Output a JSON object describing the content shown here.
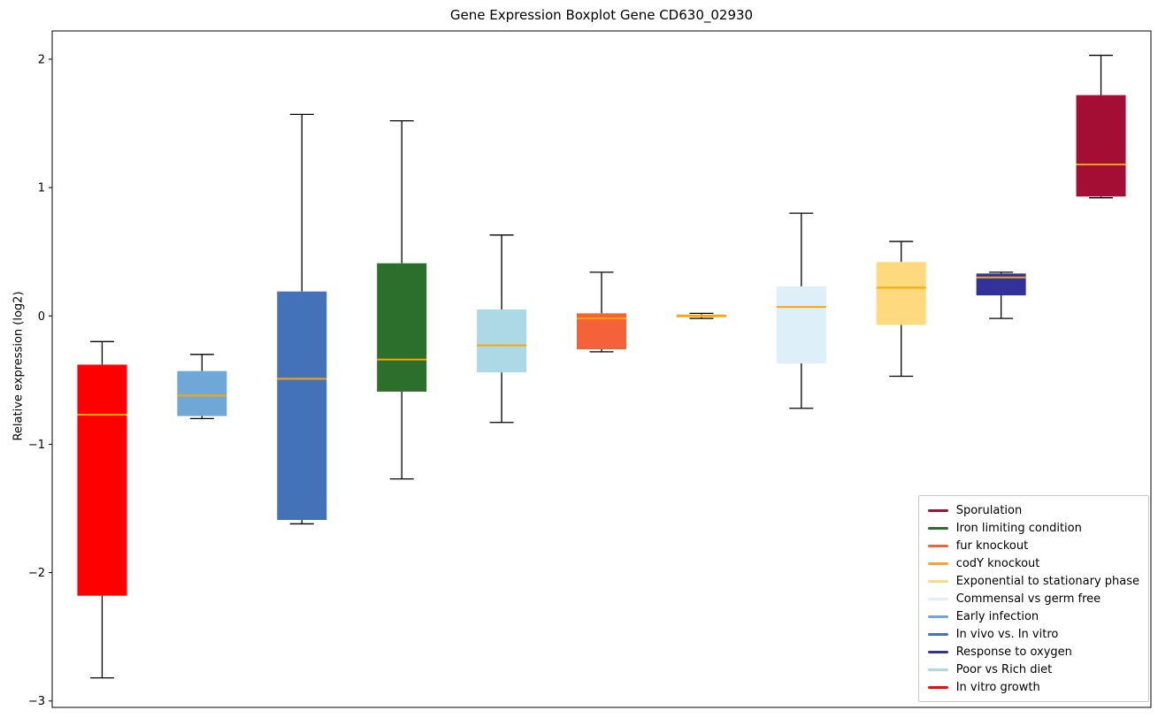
{
  "chart_data": {
    "type": "boxplot",
    "title": "Gene Expression Boxplot Gene CD630_02930",
    "ylabel": "Relative expression (log2)",
    "ylim": [
      -3.05,
      2.22
    ],
    "yticks": [
      -3,
      -2,
      -1,
      0,
      1,
      2
    ],
    "grid": false,
    "median_color": "#ffa500",
    "whisker_color": "#000000",
    "groups": [
      {
        "label": "In vitro growth",
        "color": "#ff0000",
        "whislo": -2.82,
        "q1": -2.18,
        "med": -0.77,
        "q3": -0.38,
        "whishi": -0.2
      },
      {
        "label": "Early infection",
        "color": "#6fa8d6",
        "whislo": -0.8,
        "q1": -0.78,
        "med": -0.62,
        "q3": -0.43,
        "whishi": -0.3
      },
      {
        "label": "In vivo vs. In vitro",
        "color": "#4472b9",
        "whislo": -1.62,
        "q1": -1.59,
        "med": -0.49,
        "q3": 0.19,
        "whishi": 1.57
      },
      {
        "label": "Iron limiting condition",
        "color": "#2c6e2c",
        "whislo": -1.27,
        "q1": -0.59,
        "med": -0.34,
        "q3": 0.41,
        "whishi": 1.52
      },
      {
        "label": "Poor vs Rich diet",
        "color": "#add8e6",
        "whislo": -0.83,
        "q1": -0.44,
        "med": -0.23,
        "q3": 0.05,
        "whishi": 0.63
      },
      {
        "label": "fur knockout",
        "color": "#f4623a",
        "whislo": -0.28,
        "q1": -0.26,
        "med": -0.02,
        "q3": 0.02,
        "whishi": 0.34
      },
      {
        "label": "codY knockout",
        "color": "#ffa033",
        "whislo": -0.02,
        "q1": -0.01,
        "med": 0.0,
        "q3": 0.01,
        "whishi": 0.02
      },
      {
        "label": "Commensal vs germ free",
        "color": "#ddeff8",
        "whislo": -0.72,
        "q1": -0.37,
        "med": 0.07,
        "q3": 0.23,
        "whishi": 0.8
      },
      {
        "label": "Exponential to stationary phase",
        "color": "#ffd97d",
        "whislo": -0.47,
        "q1": -0.07,
        "med": 0.22,
        "q3": 0.42,
        "whishi": 0.58
      },
      {
        "label": "Response to oxygen",
        "color": "#32329b",
        "whislo": -0.02,
        "q1": 0.16,
        "med": 0.3,
        "q3": 0.33,
        "whishi": 0.34
      },
      {
        "label": "Sporulation",
        "color": "#a40e34",
        "whislo": 0.92,
        "q1": 0.93,
        "med": 1.18,
        "q3": 1.72,
        "whishi": 2.03
      }
    ],
    "legend": [
      {
        "label": "Sporulation",
        "color": "#a40e34"
      },
      {
        "label": "Iron limiting condition",
        "color": "#2c6e2c"
      },
      {
        "label": "fur knockout",
        "color": "#f4623a"
      },
      {
        "label": "codY knockout",
        "color": "#ffa033"
      },
      {
        "label": "Exponential to stationary phase",
        "color": "#ffd97d"
      },
      {
        "label": "Commensal vs germ free",
        "color": "#ddeff8"
      },
      {
        "label": "Early infection",
        "color": "#6fa8d6"
      },
      {
        "label": "In vivo vs. In vitro",
        "color": "#4472b9"
      },
      {
        "label": "Response to oxygen",
        "color": "#32329b"
      },
      {
        "label": "Poor vs Rich diet",
        "color": "#add8e6"
      },
      {
        "label": "In vitro growth",
        "color": "#ff0000"
      }
    ],
    "legend_position": "lower right"
  }
}
